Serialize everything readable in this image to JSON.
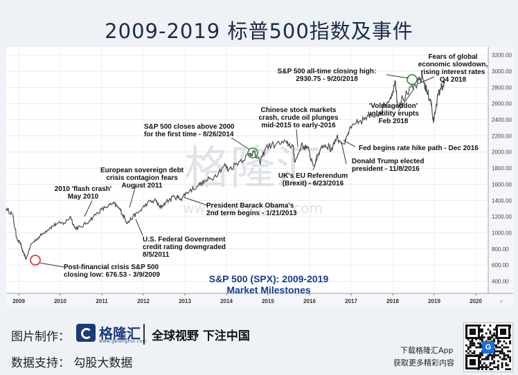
{
  "title": "2009-2019 标普500指数及事件",
  "watermark": {
    "brand": "格隆汇",
    "domain": "www.gelonghui.com"
  },
  "chart_data": {
    "type": "line",
    "title": "S&P 500 (SPX): 2009-2019",
    "subtitle": "Market Milestones",
    "xlabel": "",
    "ylabel": "",
    "x_ticks": [
      "2009",
      "2010",
      "2011",
      "2012",
      "2013",
      "2014",
      "2015",
      "2016",
      "2017",
      "2018",
      "2019",
      "2020"
    ],
    "y_ticks": [
      "400.00",
      "600.00",
      "800.00",
      "1000.00",
      "1200.00",
      "1400.00",
      "1600.00",
      "1800.00",
      "2000.00",
      "2200.00",
      "2400.00",
      "2600.00",
      "2800.00",
      "3000.00",
      "3200.00"
    ],
    "xlim": [
      2008.7,
      2020.3
    ],
    "ylim": [
      250,
      3300
    ],
    "grid": true,
    "line_color": "#4a4a4a",
    "series": [
      {
        "values": [
          [
            2008.7,
            1300
          ],
          [
            2008.85,
            1230
          ],
          [
            2008.95,
            940
          ],
          [
            2009.05,
            860
          ],
          [
            2009.1,
            760
          ],
          [
            2009.18,
            677
          ],
          [
            2009.3,
            860
          ],
          [
            2009.45,
            930
          ],
          [
            2009.6,
            1000
          ],
          [
            2009.75,
            1060
          ],
          [
            2009.9,
            1110
          ],
          [
            2010.1,
            1120
          ],
          [
            2010.25,
            1200
          ],
          [
            2010.35,
            1060
          ],
          [
            2010.5,
            1070
          ],
          [
            2010.7,
            1150
          ],
          [
            2010.9,
            1250
          ],
          [
            2011.1,
            1320
          ],
          [
            2011.3,
            1360
          ],
          [
            2011.45,
            1280
          ],
          [
            2011.55,
            1180
          ],
          [
            2011.62,
            1120
          ],
          [
            2011.75,
            1200
          ],
          [
            2011.9,
            1260
          ],
          [
            2012.1,
            1370
          ],
          [
            2012.3,
            1400
          ],
          [
            2012.4,
            1310
          ],
          [
            2012.55,
            1380
          ],
          [
            2012.75,
            1450
          ],
          [
            2012.9,
            1420
          ],
          [
            2013.05,
            1500
          ],
          [
            2013.3,
            1580
          ],
          [
            2013.5,
            1640
          ],
          [
            2013.7,
            1690
          ],
          [
            2013.95,
            1840
          ],
          [
            2014.05,
            1780
          ],
          [
            2014.3,
            1880
          ],
          [
            2014.55,
            1970
          ],
          [
            2014.65,
            2000
          ],
          [
            2014.8,
            1870
          ],
          [
            2014.95,
            2060
          ],
          [
            2015.2,
            2100
          ],
          [
            2015.45,
            2110
          ],
          [
            2015.6,
            2070
          ],
          [
            2015.65,
            1870
          ],
          [
            2015.8,
            2080
          ],
          [
            2015.95,
            2050
          ],
          [
            2016.1,
            1830
          ],
          [
            2016.3,
            2080
          ],
          [
            2016.48,
            2080
          ],
          [
            2016.5,
            2010
          ],
          [
            2016.65,
            2180
          ],
          [
            2016.85,
            2100
          ],
          [
            2016.95,
            2260
          ],
          [
            2017.2,
            2380
          ],
          [
            2017.45,
            2430
          ],
          [
            2017.7,
            2500
          ],
          [
            2017.95,
            2680
          ],
          [
            2018.07,
            2870
          ],
          [
            2018.12,
            2590
          ],
          [
            2018.35,
            2720
          ],
          [
            2018.6,
            2850
          ],
          [
            2018.72,
            2930
          ],
          [
            2018.82,
            2750
          ],
          [
            2018.92,
            2640
          ],
          [
            2018.98,
            2360
          ],
          [
            2019.05,
            2600
          ],
          [
            2019.15,
            2790
          ],
          [
            2019.25,
            2850
          ]
        ]
      }
    ],
    "annotations": [
      {
        "text": "Post-financial crisis S&P 500",
        "text2": "closing low: 676.53 - 3/9/2009"
      },
      {
        "text": "2010 'flash crash'",
        "text2": "May 2010"
      },
      {
        "text": "European sovereign debt",
        "text2": "crisis contagion fears",
        "text3": "August 2011"
      },
      {
        "text": "U.S. Federal Government",
        "text2": "credit rating downgraded",
        "text3": "8/5/2011"
      },
      {
        "text": "President Barack Obama's",
        "text2": "2nd term begins - 1/21/2013"
      },
      {
        "text": "S&P 500 closes above 2000",
        "text2": "for the first time - 8/26/2014"
      },
      {
        "text": "Chinese stock markets",
        "text2": "crash, crude oil plunges",
        "text3": "mid-2015 to early-2016"
      },
      {
        "text": "UK's EU Referendum",
        "text2": "(Brexit) - 6/23/2016"
      },
      {
        "text": "Donald Trump elected",
        "text2": "president - 11/8/2016"
      },
      {
        "text": "Fed begins rate hike path - Dec 2016"
      },
      {
        "text": "'Volmageddon'",
        "text2": "volatility erupts",
        "text3": "Feb 2018"
      },
      {
        "text": "S&P 500 all-time closing high:",
        "text2": "2930.75 - 9/20/2018"
      },
      {
        "text": "Fears of global",
        "text2": "economic slowdown,",
        "text3": "rising interest rates",
        "text4": "Q4 2018"
      }
    ]
  },
  "footer": {
    "made_label": "图片制作：",
    "brand_name": "格隆汇",
    "brand_domain": "www.gelonghui.com",
    "slogan": "全球视野 下注中国",
    "data_label": "数据支持：  勾股大数据",
    "download": "下载格隆汇App",
    "more": "获取更多精彩内容",
    "qr_logo": "G"
  }
}
